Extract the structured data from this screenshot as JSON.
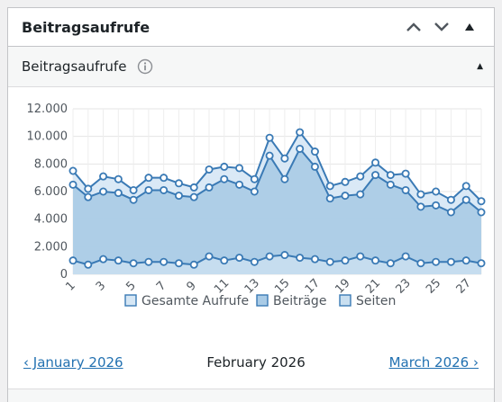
{
  "widget": {
    "title": "Beitragsaufrufe",
    "sub_title": "Beitragsaufrufe",
    "sub_toggle": "▲"
  },
  "nav": {
    "prev": "‹ January 2026",
    "current": "February 2026",
    "next": "March 2026 ›"
  },
  "colors": {
    "series_total": "#d6e7f5",
    "series_posts": "#a9cbe6",
    "series_pages": "#c9dff0",
    "line": "#3a7ab5"
  },
  "chart_data": {
    "type": "area",
    "x": [
      1,
      2,
      3,
      4,
      5,
      6,
      7,
      8,
      9,
      10,
      11,
      12,
      13,
      14,
      15,
      16,
      17,
      18,
      19,
      20,
      21,
      22,
      23,
      24,
      25,
      26,
      27,
      28
    ],
    "x_tick_labels": [
      "1",
      "3",
      "5",
      "7",
      "9",
      "11",
      "13",
      "15",
      "17",
      "19",
      "21",
      "23",
      "25",
      "27"
    ],
    "y_tick_labels": [
      "0",
      "2.000",
      "4.000",
      "6.000",
      "8.000",
      "10.000",
      "12.000"
    ],
    "ylim": [
      0,
      12000
    ],
    "legend": [
      "Gesamte Aufrufe",
      "Beiträge",
      "Seiten"
    ],
    "legend_position": "bottom",
    "grid": true,
    "series": [
      {
        "name": "Gesamte Aufrufe",
        "values": [
          7500,
          6200,
          7100,
          6900,
          6100,
          7000,
          7000,
          6600,
          6300,
          7600,
          7800,
          7700,
          6900,
          9900,
          8400,
          10300,
          8900,
          6400,
          6700,
          7100,
          8100,
          7200,
          7300,
          5800,
          6000,
          5400,
          6400,
          5300
        ]
      },
      {
        "name": "Beiträge",
        "values": [
          6500,
          5600,
          6000,
          5900,
          5400,
          6100,
          6100,
          5700,
          5600,
          6300,
          6900,
          6500,
          6000,
          8600,
          6900,
          9100,
          7800,
          5500,
          5700,
          5800,
          7200,
          6500,
          6100,
          4900,
          5000,
          4500,
          5400,
          4500
        ]
      },
      {
        "name": "Seiten",
        "values": [
          1000,
          700,
          1100,
          1000,
          800,
          900,
          900,
          800,
          700,
          1300,
          1000,
          1200,
          900,
          1300,
          1400,
          1200,
          1100,
          900,
          1000,
          1300,
          1000,
          800,
          1300,
          800,
          900,
          900,
          1000,
          800
        ]
      }
    ]
  }
}
